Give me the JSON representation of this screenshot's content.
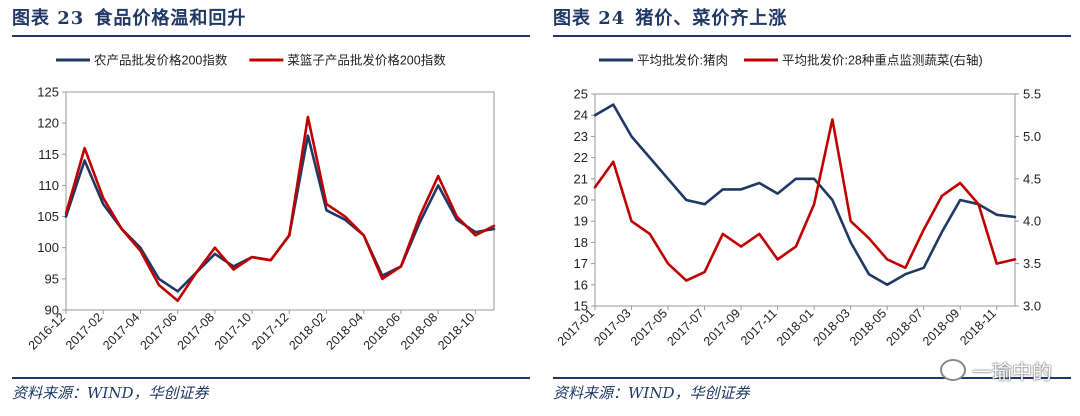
{
  "figures": [
    {
      "number_label": "图表 23",
      "title": "食品价格温和回升",
      "source": "资料来源：WIND，华创证券"
    },
    {
      "number_label": "图表 24",
      "title": "猪价、菜价齐上涨",
      "source": "资料来源：WIND，华创证券"
    }
  ],
  "watermark": "一瑜中的",
  "chart_data": [
    {
      "type": "line",
      "title": "",
      "xlabel": "",
      "ylabel": "",
      "x_ticks": [
        "2016-12",
        "2017-02",
        "2017-04",
        "2017-06",
        "2017-08",
        "2017-10",
        "2017-12",
        "2018-02",
        "2018-04",
        "2018-06",
        "2018-08",
        "2018-10"
      ],
      "x_range": [
        "2016-12",
        "2018-11"
      ],
      "ylim": [
        90,
        125
      ],
      "y_ticks": [
        90,
        95,
        100,
        105,
        110,
        115,
        120,
        125
      ],
      "grid": false,
      "legend_position": "top",
      "series": [
        {
          "name": "农产品批发价格200指数",
          "color": "#1f3864",
          "x": [
            "2016-12",
            "2017-01",
            "2017-02",
            "2017-03",
            "2017-04",
            "2017-05",
            "2017-06",
            "2017-07",
            "2017-08",
            "2017-09",
            "2017-10",
            "2017-11",
            "2017-12",
            "2018-01",
            "2018-02",
            "2018-03",
            "2018-04",
            "2018-05",
            "2018-06",
            "2018-07",
            "2018-08",
            "2018-09",
            "2018-10",
            "2018-11"
          ],
          "values": [
            105,
            114,
            107,
            103,
            100,
            95,
            93,
            96,
            99,
            97,
            98.5,
            98,
            102,
            118,
            106,
            104.5,
            102,
            95.5,
            97,
            104,
            110,
            104.5,
            102.5,
            103
          ]
        },
        {
          "name": "菜篮子产品批发价格200指数",
          "color": "#c00000",
          "x": [
            "2016-12",
            "2017-01",
            "2017-02",
            "2017-03",
            "2017-04",
            "2017-05",
            "2017-06",
            "2017-07",
            "2017-08",
            "2017-09",
            "2017-10",
            "2017-11",
            "2017-12",
            "2018-01",
            "2018-02",
            "2018-03",
            "2018-04",
            "2018-05",
            "2018-06",
            "2018-07",
            "2018-08",
            "2018-09",
            "2018-10",
            "2018-11"
          ],
          "values": [
            105.5,
            116,
            108,
            103,
            99.5,
            94,
            91.5,
            96,
            100,
            96.5,
            98.5,
            98,
            102,
            121,
            107,
            105,
            102,
            95,
            97,
            105,
            111.5,
            105,
            102,
            103.5
          ]
        }
      ]
    },
    {
      "type": "line",
      "title": "",
      "xlabel": "",
      "ylabel": "",
      "x_ticks": [
        "2017-01",
        "2017-03",
        "2017-05",
        "2017-07",
        "2017-09",
        "2017-11",
        "2018-01",
        "2018-03",
        "2018-05",
        "2018-07",
        "2018-09",
        "2018-11"
      ],
      "x_range": [
        "2017-01",
        "2018-12"
      ],
      "ylim_left": [
        15,
        25
      ],
      "y_ticks_left": [
        15,
        16,
        17,
        18,
        19,
        20,
        21,
        22,
        23,
        24,
        25
      ],
      "ylim_right": [
        3.0,
        5.5
      ],
      "y_ticks_right": [
        "3.0",
        "3.5",
        "4.0",
        "4.5",
        "5.0",
        "5.5"
      ],
      "grid": false,
      "legend_position": "top",
      "series": [
        {
          "name": "平均批发价:猪肉",
          "axis": "left",
          "color": "#1f3864",
          "x": [
            "2017-01",
            "2017-02",
            "2017-03",
            "2017-04",
            "2017-05",
            "2017-06",
            "2017-07",
            "2017-08",
            "2017-09",
            "2017-10",
            "2017-11",
            "2017-12",
            "2018-01",
            "2018-02",
            "2018-03",
            "2018-04",
            "2018-05",
            "2018-06",
            "2018-07",
            "2018-08",
            "2018-09",
            "2018-10",
            "2018-11",
            "2018-12"
          ],
          "values": [
            24,
            24.5,
            23,
            22,
            21,
            20,
            19.8,
            20.5,
            20.5,
            20.8,
            20.3,
            21,
            21,
            20,
            18,
            16.5,
            16,
            16.5,
            16.8,
            18.5,
            20,
            19.8,
            19.3,
            19.2
          ]
        },
        {
          "name": "平均批发价:28种重点监测蔬菜(右轴)",
          "axis": "right",
          "color": "#c00000",
          "x": [
            "2017-01",
            "2017-02",
            "2017-03",
            "2017-04",
            "2017-05",
            "2017-06",
            "2017-07",
            "2017-08",
            "2017-09",
            "2017-10",
            "2017-11",
            "2017-12",
            "2018-01",
            "2018-02",
            "2018-03",
            "2018-04",
            "2018-05",
            "2018-06",
            "2018-07",
            "2018-08",
            "2018-09",
            "2018-10",
            "2018-11",
            "2018-12"
          ],
          "values": [
            4.4,
            4.7,
            4.0,
            3.85,
            3.5,
            3.3,
            3.4,
            3.85,
            3.7,
            3.85,
            3.55,
            3.7,
            4.2,
            5.2,
            4.0,
            3.8,
            3.55,
            3.45,
            3.9,
            4.3,
            4.45,
            4.2,
            3.5,
            3.55
          ]
        }
      ]
    }
  ]
}
